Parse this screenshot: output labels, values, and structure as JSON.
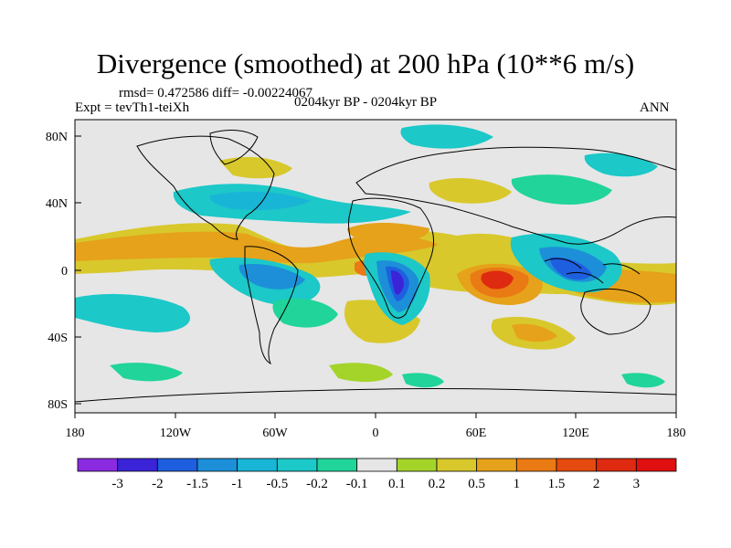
{
  "title": "Divergence (smoothed) at 200 hPa (10**6 m/s)",
  "stats": "rmsd= 0.472586 diff= -0.00224067",
  "experiment": "Expt = tevTh1-teiXh",
  "period": "0204kyr BP - 0204kyr BP",
  "season": "ANN",
  "lat_labels": [
    "80N",
    "40N",
    "0",
    "40S",
    "80S"
  ],
  "lon_labels": [
    "180",
    "120W",
    "60W",
    "0",
    "60E",
    "120E",
    "180"
  ],
  "colorbar": {
    "labels": [
      "-3",
      "-2",
      "-1.5",
      "-1",
      "-0.5",
      "-0.2",
      "-0.1",
      "0.1",
      "0.2",
      "0.5",
      "1",
      "1.5",
      "2",
      "3"
    ],
    "colors": [
      "#8a2be2",
      "#3b23d8",
      "#1e5fe0",
      "#1d8fd8",
      "#19b5d6",
      "#1cc8c8",
      "#20d49a",
      "#e6e6e6",
      "#a4d42a",
      "#d8c82c",
      "#e6a21a",
      "#ea7a14",
      "#e54a10",
      "#de2a10",
      "#e01010"
    ]
  },
  "colors": {
    "land_outline": "#000000",
    "ocean_neutral": "#e6e6e6"
  }
}
